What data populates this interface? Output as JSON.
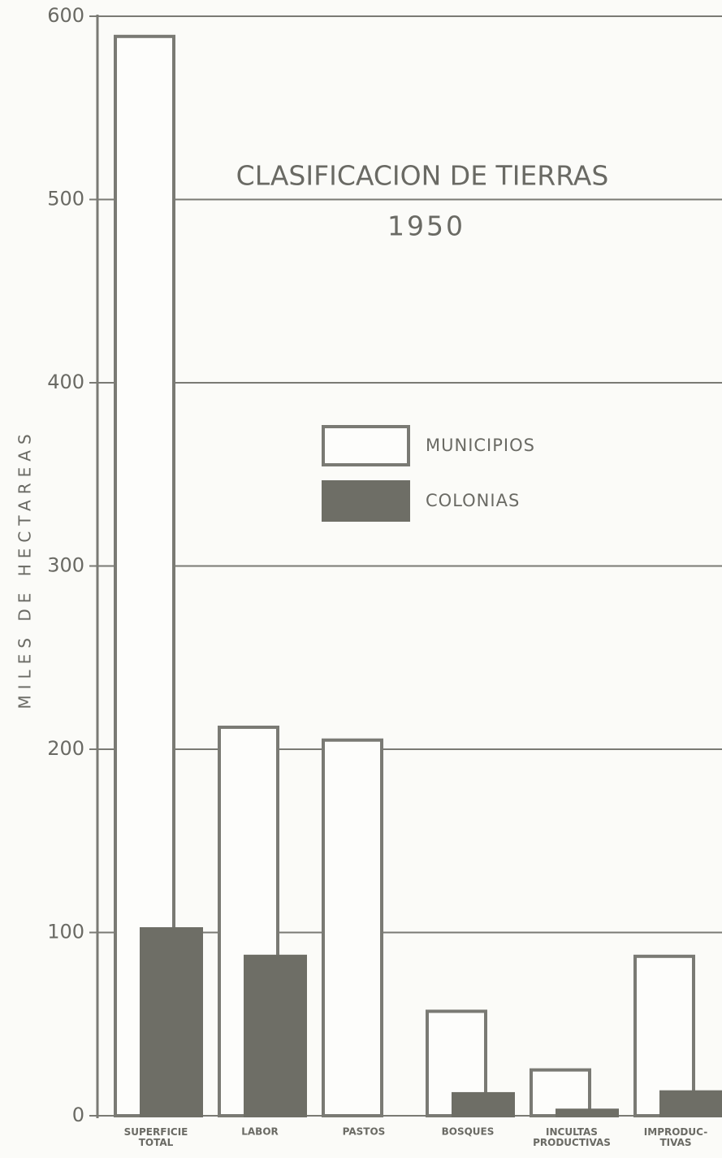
{
  "chart_data": {
    "type": "bar",
    "title": "CLASIFICACION DE TIERRAS",
    "subtitle": "1950",
    "y_label": "MILES DE HECTAREAS",
    "categories": [
      "SUPERFICIE TOTAL",
      "LABOR",
      "PASTOS",
      "BOSQUES",
      "INCULTAS PRODUCTIVAS",
      "IMPRODUC- TIVAS"
    ],
    "series": [
      {
        "name": "MUNICIPIOS",
        "color": "#fdfdfb",
        "values": [
          589,
          212,
          205,
          57,
          25,
          87
        ]
      },
      {
        "name": "COLONIAS",
        "color": "#6e6e66",
        "values": [
          102,
          87,
          0,
          12,
          3,
          13
        ]
      }
    ],
    "ylim": [
      0,
      600
    ],
    "yticks": [
      0,
      100,
      200,
      300,
      400,
      500,
      600
    ],
    "grid": true
  }
}
